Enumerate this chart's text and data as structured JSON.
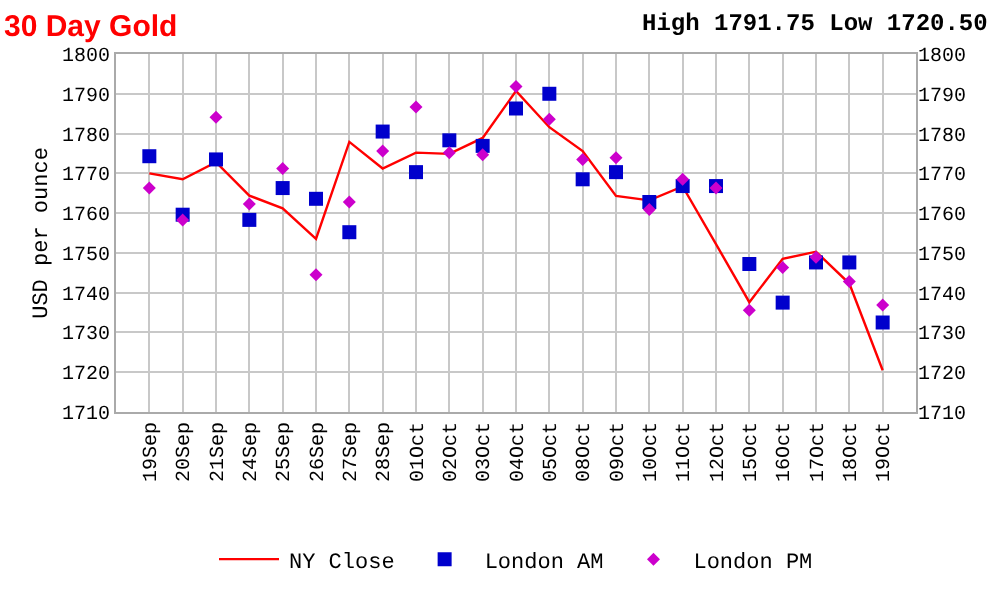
{
  "chart_data": {
    "type": "line",
    "title": "30 Day Gold",
    "subtitle": "High 1791.75 Low 1720.50",
    "ylabel": "USD per ounce",
    "categories": [
      "19Sep",
      "20Sep",
      "21Sep",
      "24Sep",
      "25Sep",
      "26Sep",
      "27Sep",
      "28Sep",
      "01Oct",
      "02Oct",
      "03Oct",
      "04Oct",
      "05Oct",
      "08Oct",
      "09Oct",
      "10Oct",
      "11Oct",
      "12Oct",
      "15Oct",
      "16Oct",
      "17Oct",
      "18Oct",
      "19Oct"
    ],
    "series": [
      {
        "name": "NY Close",
        "marker": "none",
        "color": "#ff0000",
        "values": [
          1770.0,
          1768.5,
          1772.8,
          1764.4,
          1761.2,
          1753.5,
          1777.9,
          1771.2,
          1775.2,
          1774.9,
          1778.9,
          1790.7,
          1781.6,
          1775.6,
          1764.3,
          1763.2,
          1766.7,
          1752.2,
          1737.6,
          1748.5,
          1750.3,
          1742.3,
          1720.5
        ]
      },
      {
        "name": "London AM",
        "type": "scatter",
        "marker": "square",
        "color": "#0000cc",
        "values": [
          1774.3,
          1759.6,
          1773.5,
          1758.3,
          1766.3,
          1763.6,
          1755.2,
          1780.5,
          1770.3,
          1778.3,
          1776.9,
          1786.3,
          1790.0,
          1768.5,
          1770.3,
          1762.8,
          1766.8,
          1766.8,
          1747.2,
          1737.5,
          1747.6,
          1747.6,
          1732.5
        ]
      },
      {
        "name": "London PM",
        "type": "scatter",
        "marker": "diamond",
        "color": "#cc00cc",
        "values": [
          1766.3,
          1758.3,
          1784.1,
          1762.3,
          1771.2,
          1744.5,
          1762.8,
          1775.6,
          1786.7,
          1775.2,
          1774.7,
          1791.8,
          1783.6,
          1773.5,
          1773.9,
          1760.9,
          1768.5,
          1766.3,
          1735.6,
          1746.3,
          1748.9,
          1742.8,
          1736.9
        ]
      }
    ],
    "ylim": [
      1710,
      1800
    ],
    "yticks": [
      1710,
      1720,
      1730,
      1740,
      1750,
      1760,
      1770,
      1780,
      1790,
      1800
    ],
    "y2lim": [
      1710,
      1800
    ],
    "y2ticks": [
      1710,
      1720,
      1730,
      1740,
      1750,
      1760,
      1770,
      1780,
      1790,
      1800
    ],
    "grid": true,
    "legend": "bottom"
  }
}
